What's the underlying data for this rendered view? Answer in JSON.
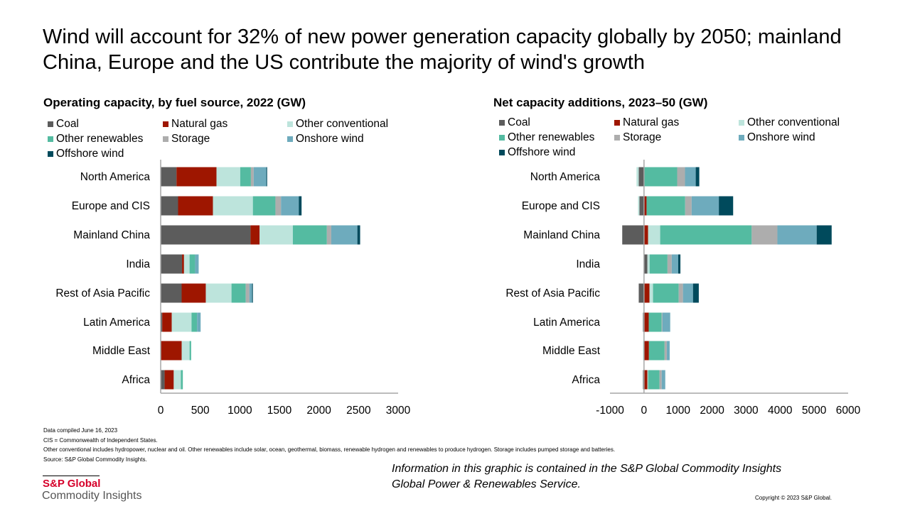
{
  "title": "Wind will account for 32% of new power generation capacity globally by 2050; mainland China, Europe and the US contribute the majority of wind's growth",
  "colors": {
    "Coal": "#5c5c5c",
    "Natural gas": "#9e1600",
    "Other conventional": "#bde4dc",
    "Other renewables": "#54bba1",
    "Storage": "#adadad",
    "Onshore wind": "#6eabbd",
    "Offshore wind": "#004a5c"
  },
  "chart_data": [
    {
      "type": "bar",
      "orientation": "horizontal",
      "stacked": true,
      "title": "Operating capacity, by fuel source, 2022 (GW)",
      "xlim": [
        0,
        3000
      ],
      "xticks": [
        "0",
        "500",
        "1000",
        "1500",
        "2000",
        "2500",
        "3000"
      ],
      "legend": "top",
      "categories": [
        "North America",
        "Europe and CIS",
        "Mainland China",
        "India",
        "Rest of Asia Pacific",
        "Latin America",
        "Middle East",
        "Africa"
      ],
      "series": [
        {
          "name": "Coal",
          "values": [
            200,
            220,
            1135,
            270,
            265,
            20,
            0,
            50
          ]
        },
        {
          "name": "Natural gas",
          "values": [
            505,
            440,
            115,
            25,
            305,
            120,
            265,
            115
          ]
        },
        {
          "name": "Other conventional",
          "values": [
            300,
            505,
            420,
            70,
            325,
            250,
            100,
            90
          ]
        },
        {
          "name": "Other renewables",
          "values": [
            135,
            285,
            430,
            70,
            180,
            70,
            20,
            25
          ]
        },
        {
          "name": "Storage",
          "values": [
            35,
            70,
            55,
            0,
            45,
            0,
            0,
            0
          ]
        },
        {
          "name": "Onshore wind",
          "values": [
            160,
            225,
            330,
            45,
            35,
            45,
            0,
            0
          ]
        },
        {
          "name": "Offshore wind",
          "values": [
            10,
            35,
            35,
            0,
            10,
            0,
            0,
            0
          ]
        }
      ]
    },
    {
      "type": "bar",
      "orientation": "horizontal",
      "stacked": true,
      "title": "Net capacity additions, 2023–50 (GW)",
      "xlim": [
        -1000,
        6000
      ],
      "xticks": [
        "-1000",
        "0",
        "1000",
        "2000",
        "3000",
        "4000",
        "5000",
        "6000"
      ],
      "legend": "top",
      "categories": [
        "North America",
        "Europe and CIS",
        "Mainland China",
        "India",
        "Rest of Asia Pacific",
        "Latin America",
        "Middle East",
        "Africa"
      ],
      "series": [
        {
          "name": "Coal",
          "values": [
            -155,
            -135,
            -640,
            100,
            -155,
            -30,
            0,
            -30
          ]
        },
        {
          "name": "Natural gas",
          "values": [
            0,
            75,
            120,
            0,
            160,
            140,
            145,
            100
          ]
        },
        {
          "name": "Other conventional",
          "values": [
            -65,
            -40,
            355,
            65,
            105,
            0,
            -30,
            20
          ]
        },
        {
          "name": "Other renewables",
          "values": [
            975,
            1135,
            2690,
            525,
            755,
            380,
            460,
            335
          ]
        },
        {
          "name": "Storage",
          "values": [
            230,
            190,
            755,
            125,
            125,
            20,
            65,
            65
          ]
        },
        {
          "name": "Onshore wind",
          "values": [
            315,
            800,
            1155,
            190,
            295,
            230,
            85,
            105
          ]
        },
        {
          "name": "Offshore wind",
          "values": [
            105,
            420,
            440,
            65,
            170,
            0,
            0,
            0
          ]
        }
      ]
    }
  ],
  "notes": [
    "Data compiled June 16, 2023",
    "CIS = Commonwealth of Independent States.",
    "Other conventional includes hydropower, nuclear and oil. Other renewables include solar, ocean, geothermal, biomass, renewable hydrogen and renewables to produce hydrogen. Storage includes pumped storage and batteries.",
    "Source: S&P Global Commodity Insights."
  ],
  "info": [
    "Information in this graphic is contained in the S&P Global Commodity Insights",
    "Global Power & Renewables Service."
  ],
  "logo": {
    "line1": "S&P Global",
    "line2": "Commodity Insights"
  },
  "copyright": "Copyright © 2023 S&P Global."
}
